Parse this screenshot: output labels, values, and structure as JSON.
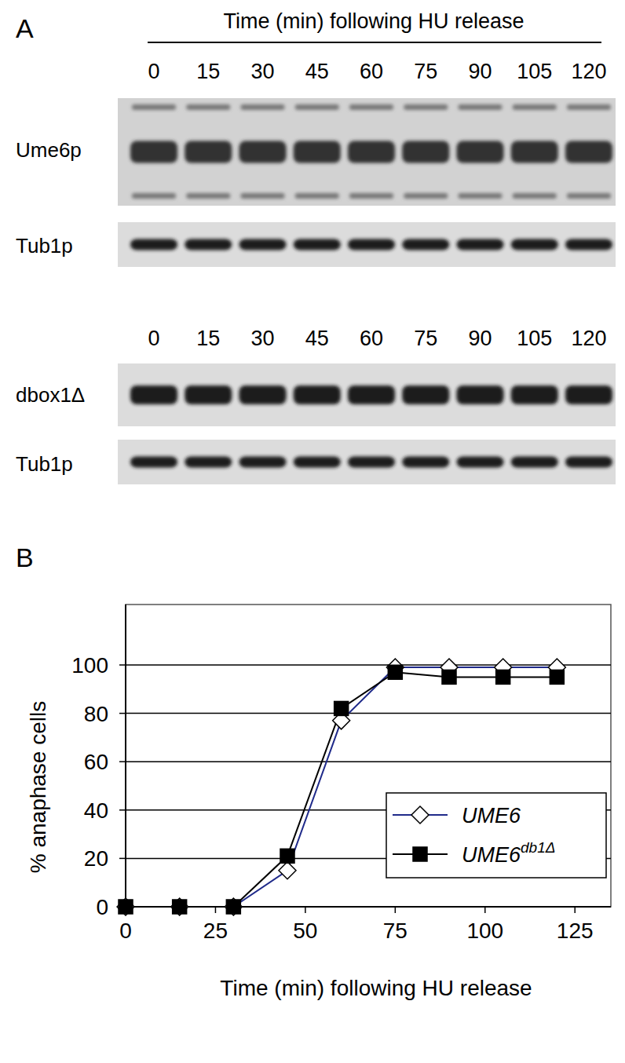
{
  "panel_labels": [
    "A",
    "B"
  ],
  "blot": {
    "header": "Time (min) following HU release",
    "lanes": [
      0,
      15,
      30,
      45,
      60,
      75,
      90,
      105,
      120
    ],
    "rows": [
      {
        "label": "Ume6p"
      },
      {
        "label": "Tub1p"
      },
      {
        "label": "dbox1Δ"
      },
      {
        "label": "Tub1p"
      }
    ]
  },
  "chart_data": {
    "type": "line",
    "x_label": "Time (min) following HU release",
    "y_label": "% anaphase cells",
    "x": [
      0,
      15,
      30,
      45,
      60,
      75,
      90,
      105,
      120
    ],
    "series": [
      {
        "name": "UME6",
        "color": "#1f2a8a",
        "marker": "diamond",
        "values": [
          0,
          0,
          0,
          15,
          77,
          99,
          99,
          99,
          99
        ]
      },
      {
        "name": "UME6db1Δ",
        "color": "#000000",
        "marker": "square",
        "values": [
          0,
          0,
          0,
          21,
          82,
          97,
          95,
          95,
          95
        ]
      }
    ],
    "xlim": [
      0,
      135
    ],
    "xticks": [
      0,
      25,
      50,
      75,
      100,
      125
    ],
    "ylim": [
      0,
      125
    ],
    "yticks": [
      0,
      20,
      40,
      60,
      80,
      100
    ],
    "grid": true,
    "legend": "lower right"
  }
}
